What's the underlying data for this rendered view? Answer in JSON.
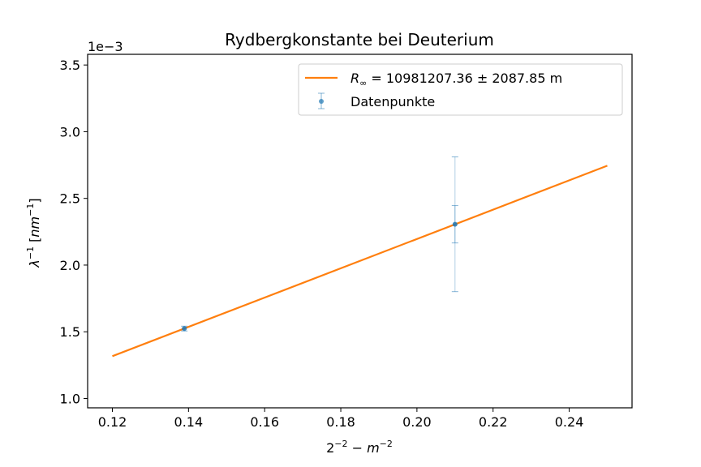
{
  "chart_data": {
    "type": "scatter",
    "title": "Rydbergkonstante bei Deuterium",
    "xlabel": {
      "base": "2",
      "exp1": "−2",
      "mid": " − ",
      "var": "m",
      "exp2": "−2"
    },
    "ylabel": {
      "lambda": "λ",
      "exp": "−1",
      "open": " [",
      "unit": "nm",
      "unit_exp": "−1",
      "close": "]"
    },
    "offset_text": "1e−3",
    "xlim": [
      0.1135,
      0.2565
    ],
    "ylim": [
      0.93,
      3.58
    ],
    "x_ticks": [
      0.12,
      0.14,
      0.16,
      0.18,
      0.2,
      0.22,
      0.24
    ],
    "x_tick_labels": [
      "0.12",
      "0.14",
      "0.16",
      "0.18",
      "0.20",
      "0.22",
      "0.24"
    ],
    "y_ticks": [
      1.0,
      1.5,
      2.0,
      2.5,
      3.0,
      3.5
    ],
    "y_tick_labels": [
      "1.0",
      "1.5",
      "2.0",
      "2.5",
      "3.0",
      "3.5"
    ],
    "grid": false,
    "legend_position": "top-right",
    "series": [
      {
        "name": "R_∞ = 10981207.36 ± 2087.85 m",
        "kind": "line",
        "color": "#ff7f0e",
        "x": [
          0.12,
          0.25
        ],
        "y": [
          1.317,
          2.745
        ]
      },
      {
        "name": "Datenpunkte",
        "kind": "errorbar",
        "color": "#1f77b4",
        "points": [
          {
            "x": 0.1389,
            "y": 1.524,
            "err": 0.018
          },
          {
            "x": 0.21,
            "y": 2.306,
            "err": 0.14
          },
          {
            "x": 0.21,
            "y": 2.306,
            "err": 0.505
          }
        ]
      }
    ],
    "legend": {
      "line_prefix": "R",
      "line_sub": "∞",
      "line_rest": " = 10981207.36 ± 2087.85 m",
      "points_label": "Datenpunkte"
    }
  }
}
